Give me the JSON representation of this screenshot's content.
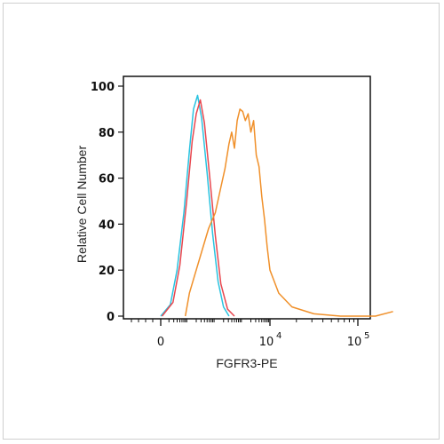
{
  "chart_data": {
    "type": "line",
    "xlabel": "FGFR3-PE",
    "ylabel": "Relative Cell Number",
    "ylim": [
      0,
      100
    ],
    "x_scale": "biexponential",
    "x_ticks": [
      {
        "label": "0",
        "pos": 0
      },
      {
        "label": "10",
        "exp": "4",
        "pos": 4
      },
      {
        "label": "10",
        "exp": "5",
        "pos": 5
      }
    ],
    "y_ticks": [
      "0",
      "20",
      "40",
      "60",
      "80",
      "100"
    ],
    "y_tick_values": [
      0,
      20,
      40,
      60,
      80,
      100
    ],
    "series": [
      {
        "color": "#29c3e0",
        "points": [
          [
            0.0,
            0
          ],
          [
            0.35,
            5
          ],
          [
            0.6,
            20
          ],
          [
            0.85,
            45
          ],
          [
            1.05,
            72
          ],
          [
            1.2,
            90
          ],
          [
            1.35,
            96
          ],
          [
            1.5,
            86
          ],
          [
            1.7,
            62
          ],
          [
            1.9,
            36
          ],
          [
            2.1,
            15
          ],
          [
            2.3,
            4
          ],
          [
            2.5,
            0
          ]
        ]
      },
      {
        "color": "#e8474f",
        "points": [
          [
            0.05,
            0
          ],
          [
            0.45,
            6
          ],
          [
            0.7,
            22
          ],
          [
            0.95,
            50
          ],
          [
            1.15,
            76
          ],
          [
            1.3,
            88
          ],
          [
            1.45,
            94
          ],
          [
            1.6,
            84
          ],
          [
            1.8,
            60
          ],
          [
            2.0,
            35
          ],
          [
            2.2,
            14
          ],
          [
            2.45,
            3
          ],
          [
            2.7,
            0
          ]
        ]
      },
      {
        "color": "#f0902a",
        "points": [
          [
            0.9,
            0
          ],
          [
            1.05,
            10
          ],
          [
            1.25,
            18
          ],
          [
            1.5,
            28
          ],
          [
            1.75,
            38
          ],
          [
            2.0,
            45
          ],
          [
            2.2,
            56
          ],
          [
            2.35,
            64
          ],
          [
            2.5,
            75
          ],
          [
            2.6,
            80
          ],
          [
            2.7,
            73
          ],
          [
            2.8,
            85
          ],
          [
            2.9,
            90
          ],
          [
            3.0,
            89
          ],
          [
            3.1,
            85
          ],
          [
            3.2,
            88
          ],
          [
            3.3,
            80
          ],
          [
            3.4,
            85
          ],
          [
            3.5,
            70
          ],
          [
            3.6,
            65
          ],
          [
            3.7,
            52
          ],
          [
            3.8,
            42
          ],
          [
            3.9,
            30
          ],
          [
            4.0,
            20
          ],
          [
            4.1,
            10
          ],
          [
            4.25,
            4
          ],
          [
            4.5,
            1
          ],
          [
            4.8,
            0
          ],
          [
            5.2,
            0
          ],
          [
            5.4,
            2
          ]
        ]
      }
    ]
  }
}
